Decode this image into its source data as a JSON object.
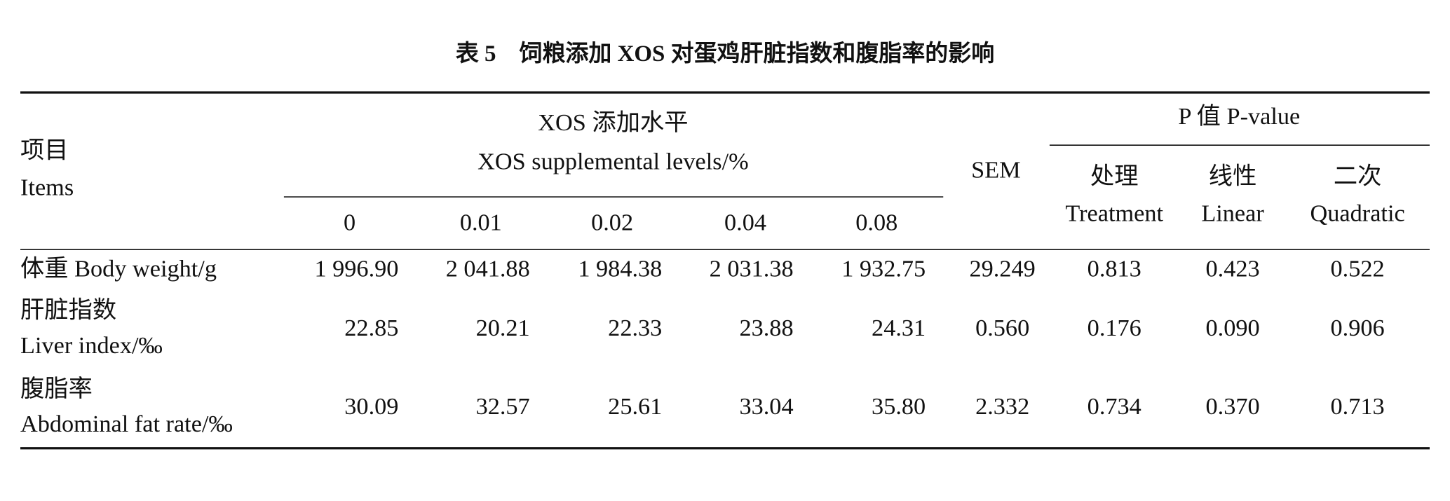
{
  "title": "表 5　饲粮添加 XOS 对蛋鸡肝脏指数和腹脂率的影响",
  "header": {
    "items": [
      "项目",
      "Items"
    ],
    "levels_group": [
      "XOS 添加水平",
      "XOS supplemental levels/%"
    ],
    "levels": [
      "0",
      "0.01",
      "0.02",
      "0.04",
      "0.08"
    ],
    "sem": "SEM",
    "p_group": "P 值 P-value",
    "p_columns": [
      [
        "处理",
        "Treatment"
      ],
      [
        "线性",
        "Linear"
      ],
      [
        "二次",
        "Quadratic"
      ]
    ]
  },
  "rows": [
    {
      "item": [
        "体重 Body weight/g"
      ],
      "values": [
        "1 996.90",
        "2 041.88",
        "1 984.38",
        "2 031.38",
        "1 932.75"
      ],
      "sem": "29.249",
      "p": [
        "0.813",
        "0.423",
        "0.522"
      ]
    },
    {
      "item": [
        "肝脏指数",
        "Liver index/‰"
      ],
      "values": [
        "22.85",
        "20.21",
        "22.33",
        "23.88",
        "24.31"
      ],
      "sem": "0.560",
      "p": [
        "0.176",
        "0.090",
        "0.906"
      ]
    },
    {
      "item": [
        "腹脂率",
        "Abdominal fat rate/‰"
      ],
      "values": [
        "30.09",
        "32.57",
        "25.61",
        "33.04",
        "35.80"
      ],
      "sem": "2.332",
      "p": [
        "0.734",
        "0.370",
        "0.713"
      ]
    }
  ]
}
